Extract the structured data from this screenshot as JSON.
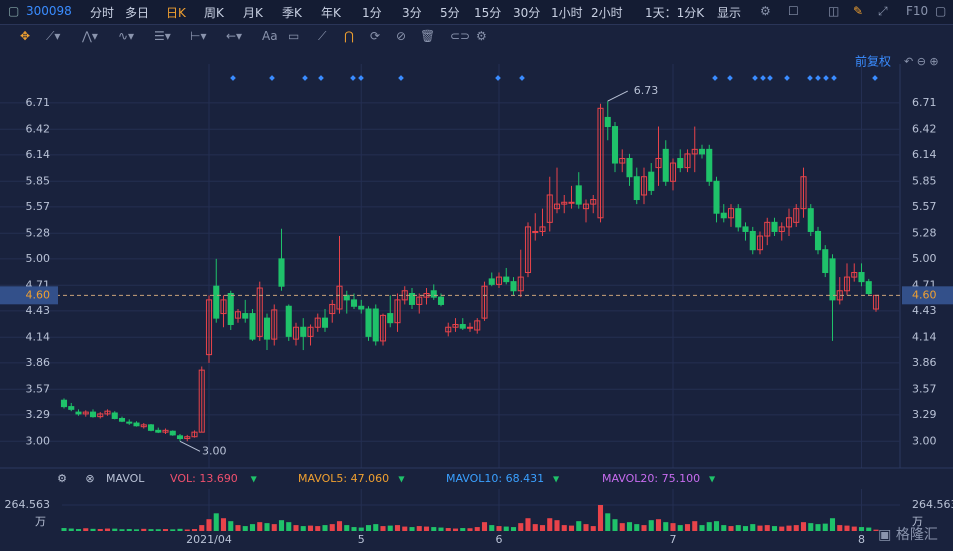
{
  "toolbar": {
    "code": "300098",
    "periods": [
      "分时",
      "多日",
      "日K",
      "周K",
      "月K",
      "季K",
      "年K",
      "1分",
      "3分",
      "5分",
      "15分",
      "30分",
      "1小时",
      "2小时"
    ],
    "interval": "1天：1分K",
    "display": "显示",
    "f10": "F10"
  },
  "drawing_tools": {
    "text_tool": "Aa"
  },
  "adjust": "前复权",
  "chart_data": {
    "type": "candlestick",
    "up_color": "#e8434a",
    "down_color": "#1fc26a",
    "categories": [
      null,
      null,
      null,
      null,
      null,
      null,
      null,
      null,
      null,
      null,
      null,
      null,
      null,
      null,
      null,
      null,
      null,
      null,
      null,
      null,
      "2021/04",
      null,
      null,
      null,
      null,
      null,
      null,
      null,
      null,
      null,
      null,
      null,
      null,
      null,
      null,
      null,
      null,
      null,
      null,
      null,
      null,
      "5",
      null,
      null,
      null,
      null,
      null,
      null,
      null,
      null,
      null,
      null,
      null,
      null,
      null,
      null,
      null,
      null,
      null,
      null,
      "6",
      null,
      null,
      null,
      null,
      null,
      null,
      null,
      null,
      null,
      null,
      null,
      null,
      null,
      null,
      null,
      null,
      null,
      null,
      null,
      null,
      null,
      null,
      null,
      "7",
      null,
      null,
      null,
      null,
      null,
      null,
      null,
      null,
      null,
      null,
      null,
      null,
      null,
      null,
      null,
      null,
      null,
      null,
      null,
      null,
      null,
      null,
      null,
      null,
      null,
      "8",
      null,
      null
    ],
    "candles": [
      [
        3.45,
        3.47,
        3.36,
        3.38
      ],
      [
        3.38,
        3.42,
        3.33,
        3.35
      ],
      [
        3.32,
        3.35,
        3.28,
        3.3
      ],
      [
        3.3,
        3.34,
        3.27,
        3.32
      ],
      [
        3.32,
        3.35,
        3.26,
        3.27
      ],
      [
        3.27,
        3.32,
        3.25,
        3.3
      ],
      [
        3.3,
        3.35,
        3.28,
        3.33
      ],
      [
        3.31,
        3.33,
        3.24,
        3.25
      ],
      [
        3.25,
        3.27,
        3.21,
        3.22
      ],
      [
        3.21,
        3.24,
        3.18,
        3.2
      ],
      [
        3.2,
        3.22,
        3.16,
        3.17
      ],
      [
        3.16,
        3.2,
        3.14,
        3.18
      ],
      [
        3.18,
        3.19,
        3.11,
        3.12
      ],
      [
        3.12,
        3.15,
        3.09,
        3.1
      ],
      [
        3.1,
        3.14,
        3.08,
        3.12
      ],
      [
        3.11,
        3.12,
        3.06,
        3.07
      ],
      [
        3.06,
        3.08,
        3,
        3.03
      ],
      [
        3.03,
        3.07,
        3,
        3.05
      ],
      [
        3.05,
        3.12,
        3.04,
        3.1
      ],
      [
        3.1,
        3.82,
        3.1,
        3.78
      ],
      [
        3.95,
        4.6,
        3.86,
        4.55
      ],
      [
        4.7,
        5,
        4.3,
        4.35
      ],
      [
        4.4,
        4.6,
        4.25,
        4.55
      ],
      [
        4.62,
        4.65,
        4.22,
        4.28
      ],
      [
        4.35,
        4.45,
        4.3,
        4.42
      ],
      [
        4.4,
        4.55,
        4.3,
        4.35
      ],
      [
        4.4,
        4.45,
        4.1,
        4.12
      ],
      [
        4.15,
        4.75,
        4.1,
        4.68
      ],
      [
        4.35,
        4.4,
        4,
        4.12
      ],
      [
        4.12,
        4.5,
        4.05,
        4.44
      ],
      [
        5,
        5.33,
        4.65,
        4.7
      ],
      [
        4.48,
        4.5,
        4.1,
        4.15
      ],
      [
        4.12,
        4.3,
        4.05,
        4.25
      ],
      [
        4.25,
        4.35,
        4,
        4.15
      ],
      [
        4.15,
        4.28,
        4.05,
        4.25
      ],
      [
        4.25,
        4.4,
        4.2,
        4.35
      ],
      [
        4.35,
        4.45,
        4.2,
        4.25
      ],
      [
        4.4,
        4.55,
        4.3,
        4.5
      ],
      [
        4.45,
        5.25,
        4.4,
        4.7
      ],
      [
        4.6,
        4.65,
        4.4,
        4.55
      ],
      [
        4.55,
        4.62,
        4.45,
        4.48
      ],
      [
        4.48,
        4.55,
        4.4,
        4.45
      ],
      [
        4.45,
        4.48,
        4.1,
        4.15
      ],
      [
        4.45,
        4.5,
        4.05,
        4.1
      ],
      [
        4.1,
        4.4,
        4.05,
        4.38
      ],
      [
        4.4,
        4.6,
        4.25,
        4.3
      ],
      [
        4.3,
        4.62,
        4.2,
        4.55
      ],
      [
        4.55,
        4.7,
        4.5,
        4.65
      ],
      [
        4.62,
        4.68,
        4.45,
        4.5
      ],
      [
        4.5,
        4.62,
        4.4,
        4.58
      ],
      [
        4.58,
        4.68,
        4.5,
        4.62
      ],
      [
        4.65,
        4.72,
        4.55,
        4.58
      ],
      [
        4.58,
        4.62,
        4.48,
        4.5
      ],
      [
        4.2,
        4.3,
        4.15,
        4.25
      ],
      [
        4.25,
        4.35,
        4.2,
        4.28
      ],
      [
        4.28,
        4.35,
        4.22,
        4.24
      ],
      [
        4.24,
        4.3,
        4.2,
        4.25
      ],
      [
        4.22,
        4.35,
        4.18,
        4.32
      ],
      [
        4.35,
        4.75,
        4.32,
        4.7
      ],
      [
        4.78,
        4.85,
        4.7,
        4.72
      ],
      [
        4.72,
        4.85,
        4.68,
        4.8
      ],
      [
        4.8,
        4.9,
        4.72,
        4.75
      ],
      [
        4.75,
        4.8,
        4.6,
        4.65
      ],
      [
        4.65,
        5.1,
        4.58,
        4.8
      ],
      [
        4.85,
        5.4,
        4.8,
        5.35
      ],
      [
        5.3,
        5.5,
        5.2,
        5.3
      ],
      [
        5.3,
        5.55,
        5.25,
        5.35
      ],
      [
        5.4,
        5.9,
        5.3,
        5.7
      ],
      [
        5.55,
        6,
        5.5,
        5.6
      ],
      [
        5.6,
        5.7,
        5.5,
        5.62
      ],
      [
        5.62,
        5.8,
        5.55,
        5.62
      ],
      [
        5.8,
        5.95,
        5.55,
        5.6
      ],
      [
        5.55,
        5.65,
        5.4,
        5.6
      ],
      [
        5.6,
        5.7,
        5.5,
        5.65
      ],
      [
        5.45,
        6.7,
        5.4,
        6.65
      ],
      [
        6.55,
        6.73,
        6.3,
        6.45
      ],
      [
        6.45,
        6.5,
        5.95,
        6.05
      ],
      [
        6.05,
        6.2,
        5.95,
        6.1
      ],
      [
        6.1,
        6.15,
        5.8,
        5.9
      ],
      [
        5.9,
        6,
        5.6,
        5.65
      ],
      [
        5.7,
        6,
        5.6,
        5.9
      ],
      [
        5.95,
        6.05,
        5.7,
        5.75
      ],
      [
        6,
        6.45,
        5.8,
        6.1
      ],
      [
        6.2,
        6.3,
        5.8,
        5.85
      ],
      [
        5.85,
        6.1,
        5.75,
        6.05
      ],
      [
        6.1,
        6.2,
        5.95,
        6
      ],
      [
        6,
        6.2,
        5.95,
        6.15
      ],
      [
        6.15,
        6.45,
        5.95,
        6.2
      ],
      [
        6.2,
        6.25,
        6.1,
        6.15
      ],
      [
        6.2,
        6.25,
        5.8,
        5.85
      ],
      [
        5.85,
        5.9,
        5.4,
        5.5
      ],
      [
        5.5,
        5.6,
        5.4,
        5.45
      ],
      [
        5.45,
        5.6,
        5.35,
        5.55
      ],
      [
        5.55,
        5.6,
        5.3,
        5.35
      ],
      [
        5.35,
        5.4,
        5.2,
        5.3
      ],
      [
        5.3,
        5.35,
        5.05,
        5.1
      ],
      [
        5.1,
        5.3,
        5.05,
        5.25
      ],
      [
        5.25,
        5.45,
        5.15,
        5.4
      ],
      [
        5.4,
        5.45,
        5.25,
        5.3
      ],
      [
        5.3,
        5.4,
        5.2,
        5.35
      ],
      [
        5.35,
        5.55,
        5.25,
        5.45
      ],
      [
        5.4,
        5.6,
        5.35,
        5.55
      ],
      [
        5.55,
        6,
        5.45,
        5.9
      ],
      [
        5.55,
        5.6,
        5.25,
        5.3
      ],
      [
        5.3,
        5.35,
        5.05,
        5.1
      ],
      [
        5.1,
        5.15,
        4.8,
        4.85
      ],
      [
        5,
        5.05,
        4.1,
        4.55
      ],
      [
        4.55,
        4.8,
        4.5,
        4.65
      ],
      [
        4.65,
        4.95,
        4.6,
        4.8
      ],
      [
        4.8,
        4.95,
        4.75,
        4.85
      ],
      [
        4.85,
        4.95,
        4.7,
        4.75
      ],
      [
        4.75,
        4.78,
        4.6,
        4.62
      ],
      [
        4.45,
        4.6,
        4.42,
        4.6
      ]
    ],
    "ylim": [
      2.74,
      7.07
    ],
    "yticks": [
      6.71,
      6.42,
      6.14,
      5.85,
      5.57,
      5.28,
      {
        "value": 5,
        "label": "5.00"
      },
      4.71,
      4.43,
      4.14,
      3.86,
      3.57,
      3.29,
      {
        "value": 3,
        "label": "3.00"
      }
    ],
    "last_price": {
      "value": 4.6,
      "label": "4.60"
    },
    "high_label": 6.73,
    "low_label": {
      "value": 3,
      "label": "3.00"
    },
    "volume": {
      "title": "MAVOL",
      "unit": "万",
      "ylim": [
        0,
        264.563
      ],
      "yticks": [
        264.563
      ],
      "indicators": [
        {
          "text": "VOL: 13.690",
          "color": "#f0506e"
        },
        {
          "text": "MAVOL5: 47.060",
          "color": "#f0a030"
        },
        {
          "text": "MAVOL10: 68.431",
          "color": "#3aa0ff"
        },
        {
          "text": "MAVOL20: 75.100",
          "color": "#c86cf0"
        }
      ],
      "values": [
        30,
        25,
        20,
        28,
        22,
        20,
        25,
        24,
        18,
        20,
        17,
        22,
        19,
        18,
        20,
        17,
        22,
        15,
        20,
        60,
        120,
        180,
        130,
        100,
        60,
        50,
        70,
        90,
        80,
        70,
        110,
        90,
        60,
        50,
        55,
        50,
        60,
        70,
        100,
        60,
        40,
        35,
        60,
        70,
        50,
        55,
        60,
        45,
        40,
        50,
        45,
        40,
        35,
        30,
        25,
        30,
        28,
        40,
        90,
        60,
        50,
        45,
        40,
        80,
        130,
        70,
        60,
        130,
        110,
        60,
        55,
        100,
        70,
        50,
        264.563,
        180,
        120,
        80,
        90,
        70,
        60,
        110,
        120,
        90,
        80,
        60,
        70,
        100,
        60,
        90,
        100,
        60,
        50,
        60,
        50,
        70,
        55,
        60,
        50,
        45,
        55,
        60,
        90,
        80,
        70,
        75,
        130,
        60,
        55,
        45,
        40,
        35,
        13.69
      ]
    }
  }
}
